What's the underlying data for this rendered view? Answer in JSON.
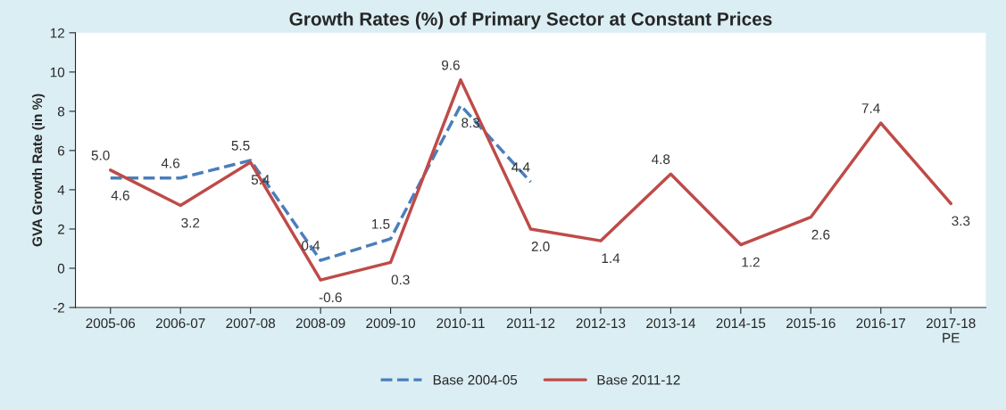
{
  "chart_data": {
    "type": "line",
    "title": "Growth Rates (%) of Primary Sector at Constant Prices",
    "ylabel": "GVA Growth Rate (in %)",
    "categories": [
      "2005-06",
      "2006-07",
      "2007-08",
      "2008-09",
      "2009-10",
      "2010-11",
      "2011-12",
      "2012-13",
      "2013-14",
      "2014-15",
      "2015-16",
      "2016-17",
      "2017-18\nPE"
    ],
    "series": [
      {
        "name": "Base 2004-05",
        "color": "#4a7ebb",
        "line_style": "dashed",
        "values": [
          4.6,
          4.6,
          5.5,
          0.4,
          1.5,
          8.3,
          4.4,
          null,
          null,
          null,
          null,
          null,
          null
        ],
        "value_labels": [
          "4.6",
          "4.6",
          "5.5",
          "0.4",
          "1.5",
          "8.3",
          "4.4",
          null,
          null,
          null,
          null,
          null,
          null
        ]
      },
      {
        "name": "Base 2011-12",
        "color": "#be4b48",
        "line_style": "solid",
        "values": [
          5.0,
          3.2,
          5.4,
          -0.6,
          0.3,
          9.6,
          2.0,
          1.4,
          4.8,
          1.2,
          2.6,
          7.4,
          3.3
        ],
        "value_labels": [
          "5.0",
          "3.2",
          "5.4",
          "-0.6",
          "0.3",
          "9.6",
          "2.0",
          "1.4",
          "4.8",
          "1.2",
          "2.6",
          "7.4",
          "3.3"
        ]
      }
    ],
    "ylim": [
      -2,
      12
    ],
    "yticks": [
      -2,
      0,
      2,
      4,
      6,
      8,
      10,
      12
    ],
    "legend": "bottom",
    "grid": false,
    "marker": "none"
  }
}
